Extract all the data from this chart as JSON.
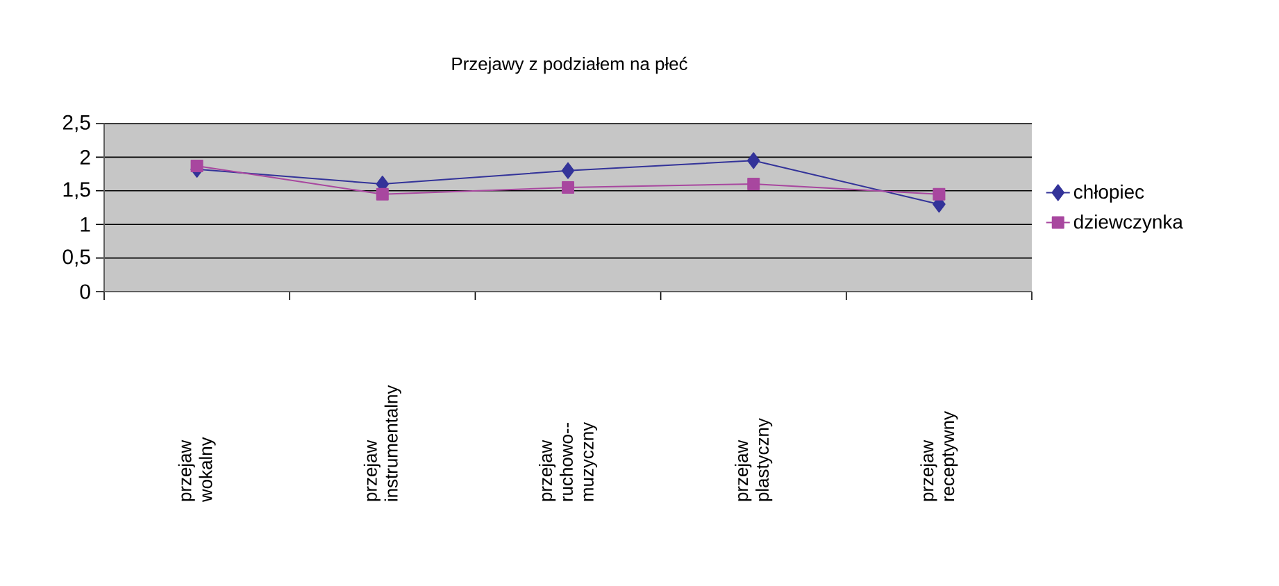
{
  "chart_data": {
    "type": "line",
    "title": "Przejawy z podziałem na płeć",
    "categories": [
      "przejaw wokalny",
      "przejaw instrumentalny",
      "przejaw ruchowo--muzyczny",
      "przejaw plastyczny",
      "przejaw receptywny"
    ],
    "series": [
      {
        "name": "chłopiec",
        "color": "#333399",
        "marker": "diamond",
        "values": [
          1.82,
          1.6,
          1.8,
          1.95,
          1.3
        ]
      },
      {
        "name": "dziewczynka",
        "color": "#a8479f",
        "marker": "square",
        "values": [
          1.87,
          1.45,
          1.55,
          1.6,
          1.45
        ]
      }
    ],
    "ylim": [
      0,
      2.5
    ],
    "yticks": [
      0,
      {
        "value": 0.5,
        "label": "0,5"
      },
      1,
      {
        "value": 1.5,
        "label": "1,5"
      },
      2,
      {
        "value": 2.5,
        "label": "2,5"
      }
    ],
    "grid": "y",
    "legend": "right",
    "line_style": "solid"
  }
}
